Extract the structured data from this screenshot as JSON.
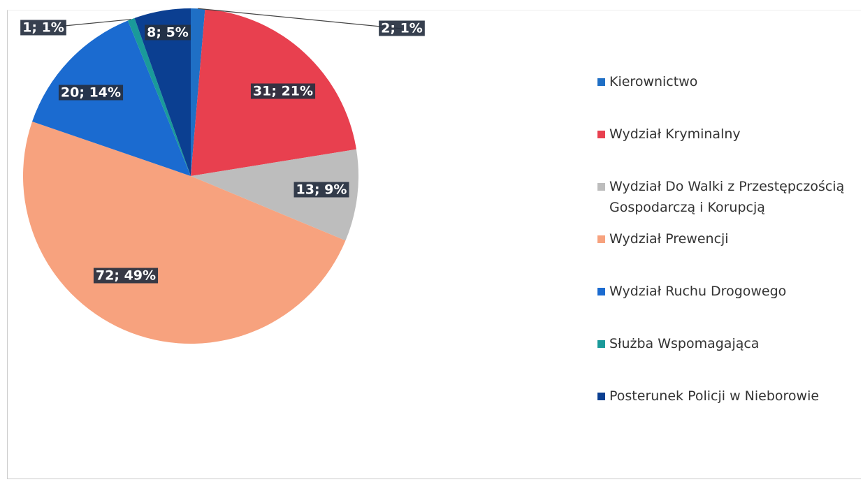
{
  "chart_data": {
    "type": "pie",
    "categories": [
      "Kierownictwo",
      "Wydział Kryminalny",
      "Wydział Do Walki z Przestępczością Gospodarczą i Korupcją",
      "Wydział Prewencji",
      "Wydział Ruchu Drogowego",
      "Służba Wspomagająca",
      "Posterunek Policji w Nieborowie"
    ],
    "values": [
      2,
      31,
      13,
      72,
      20,
      1,
      8
    ],
    "value_labels": [
      "2; 1%",
      "31; 21%",
      "13; 9%",
      "72; 49%",
      "20; 14%",
      "1; 1%",
      "8; 5%"
    ],
    "colors": [
      "#1f6fc5",
      "#e8404f",
      "#bdbdbd",
      "#f7a27e",
      "#1b6bd0",
      "#1a9a9a",
      "#0b3f91"
    ]
  }
}
